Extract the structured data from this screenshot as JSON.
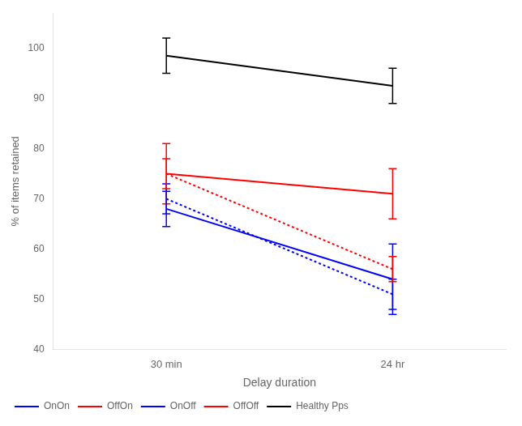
{
  "chart_data": {
    "type": "line",
    "xlabel": "Delay duration",
    "ylabel": "% of items retained",
    "categories": [
      "30 min",
      "24 hr"
    ],
    "series": [
      {
        "name": "OnOn",
        "color": "blue",
        "line_style": "solid",
        "values": [
          68,
          54
        ],
        "yerr": [
          3.5,
          7
        ]
      },
      {
        "name": "OffOn",
        "color": "red",
        "line_style": "solid",
        "values": [
          75,
          71
        ],
        "yerr": [
          6,
          5
        ]
      },
      {
        "name": "OnOff",
        "color": "blue",
        "line_style": "dotted",
        "values": [
          70,
          51
        ],
        "yerr": [
          3,
          3
        ]
      },
      {
        "name": "OffOff",
        "color": "red",
        "line_style": "dotted",
        "values": [
          75,
          56
        ],
        "yerr": [
          3,
          2.5
        ]
      },
      {
        "name": "Healthy Pps",
        "color": "black",
        "line_style": "solid",
        "values": [
          98.5,
          92.5
        ],
        "yerr": [
          3.5,
          3.5
        ]
      }
    ],
    "ylim": [
      40,
      107
    ],
    "yticks": [
      40,
      50,
      60,
      70,
      80,
      90,
      100
    ],
    "grid": false,
    "legend": "lower left"
  }
}
